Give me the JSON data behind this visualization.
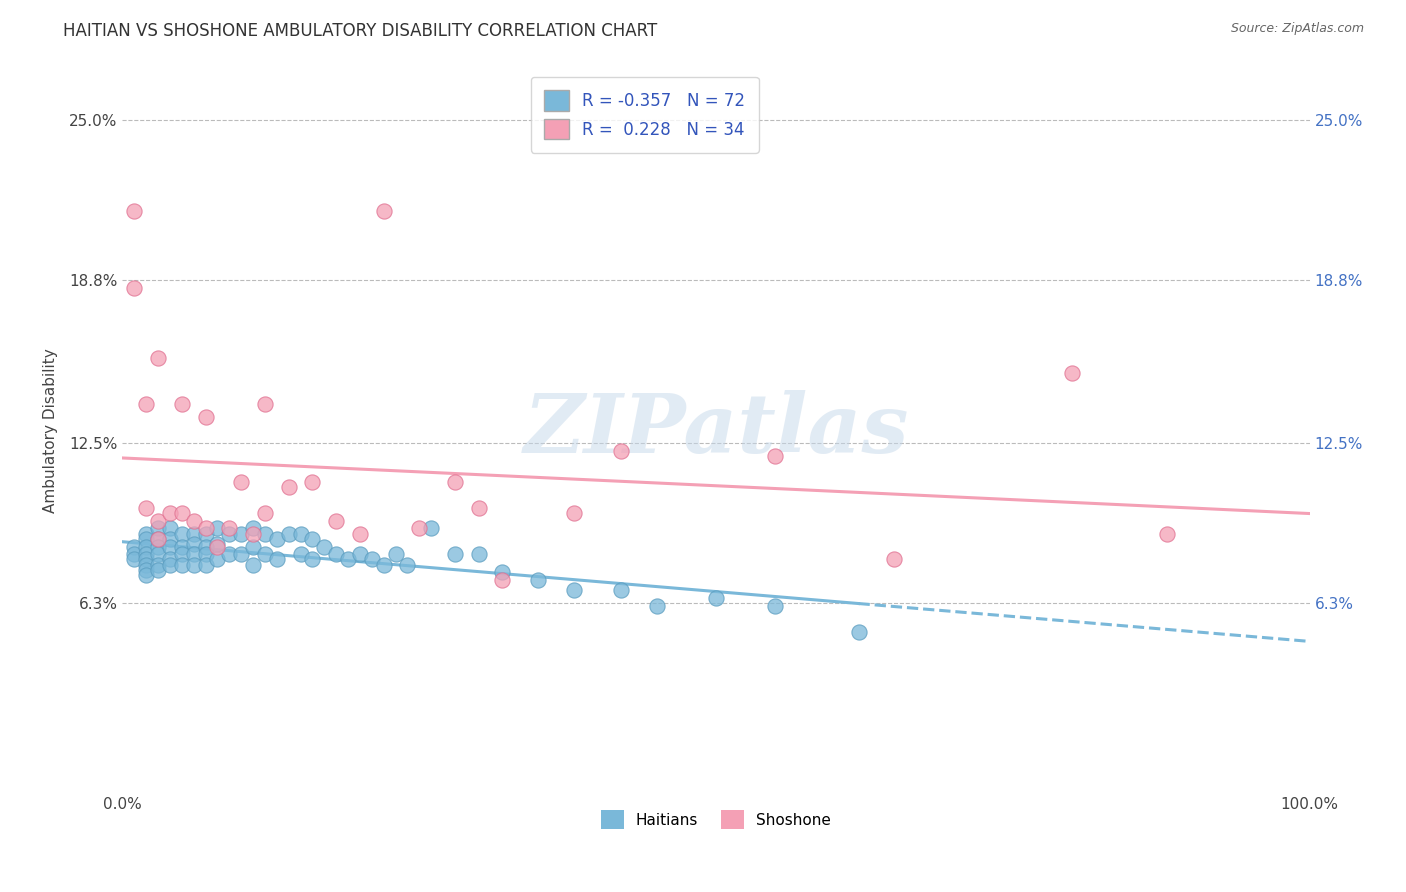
{
  "title": "HAITIAN VS SHOSHONE AMBULATORY DISABILITY CORRELATION CHART",
  "source": "Source: ZipAtlas.com",
  "ylabel": "Ambulatory Disability",
  "xlim": [
    0.0,
    1.0
  ],
  "ylim": [
    -0.01,
    0.27
  ],
  "yticks": [
    0.063,
    0.125,
    0.188,
    0.25
  ],
  "ytick_labels": [
    "6.3%",
    "12.5%",
    "18.8%",
    "25.0%"
  ],
  "xticks": [
    0.0,
    1.0
  ],
  "xtick_labels": [
    "0.0%",
    "100.0%"
  ],
  "haitian_color": "#7ab8d9",
  "haitian_color_edge": "#5a9cbf",
  "shoshone_color": "#f4a0b5",
  "shoshone_color_edge": "#e07090",
  "haitian_R": -0.357,
  "haitian_N": 72,
  "shoshone_R": 0.228,
  "shoshone_N": 34,
  "legend_label_haitian": "Haitians",
  "legend_label_shoshone": "Shoshone",
  "watermark": "ZIPatlas",
  "right_tick_color": "#4472c4",
  "haitian_x": [
    0.01,
    0.01,
    0.01,
    0.02,
    0.02,
    0.02,
    0.02,
    0.02,
    0.02,
    0.02,
    0.02,
    0.03,
    0.03,
    0.03,
    0.03,
    0.03,
    0.03,
    0.04,
    0.04,
    0.04,
    0.04,
    0.04,
    0.05,
    0.05,
    0.05,
    0.05,
    0.06,
    0.06,
    0.06,
    0.06,
    0.07,
    0.07,
    0.07,
    0.07,
    0.08,
    0.08,
    0.08,
    0.09,
    0.09,
    0.1,
    0.1,
    0.11,
    0.11,
    0.11,
    0.12,
    0.12,
    0.13,
    0.13,
    0.14,
    0.15,
    0.15,
    0.16,
    0.16,
    0.17,
    0.18,
    0.19,
    0.2,
    0.21,
    0.22,
    0.23,
    0.24,
    0.26,
    0.28,
    0.3,
    0.32,
    0.35,
    0.38,
    0.42,
    0.45,
    0.5,
    0.55,
    0.62
  ],
  "haitian_y": [
    0.085,
    0.082,
    0.08,
    0.09,
    0.088,
    0.085,
    0.082,
    0.08,
    0.078,
    0.076,
    0.074,
    0.092,
    0.088,
    0.085,
    0.082,
    0.078,
    0.076,
    0.092,
    0.088,
    0.085,
    0.08,
    0.078,
    0.09,
    0.085,
    0.082,
    0.078,
    0.09,
    0.086,
    0.082,
    0.078,
    0.09,
    0.085,
    0.082,
    0.078,
    0.092,
    0.086,
    0.08,
    0.09,
    0.082,
    0.09,
    0.082,
    0.092,
    0.085,
    0.078,
    0.09,
    0.082,
    0.088,
    0.08,
    0.09,
    0.09,
    0.082,
    0.088,
    0.08,
    0.085,
    0.082,
    0.08,
    0.082,
    0.08,
    0.078,
    0.082,
    0.078,
    0.092,
    0.082,
    0.082,
    0.075,
    0.072,
    0.068,
    0.068,
    0.062,
    0.065,
    0.062,
    0.052
  ],
  "shoshone_x": [
    0.01,
    0.01,
    0.02,
    0.02,
    0.03,
    0.03,
    0.04,
    0.05,
    0.06,
    0.07,
    0.08,
    0.09,
    0.1,
    0.11,
    0.12,
    0.14,
    0.16,
    0.18,
    0.2,
    0.22,
    0.25,
    0.28,
    0.3,
    0.32,
    0.38,
    0.42,
    0.55,
    0.65,
    0.8,
    0.88,
    0.03,
    0.05,
    0.07,
    0.12
  ],
  "shoshone_y": [
    0.215,
    0.185,
    0.14,
    0.1,
    0.095,
    0.088,
    0.098,
    0.098,
    0.095,
    0.092,
    0.085,
    0.092,
    0.11,
    0.09,
    0.098,
    0.108,
    0.11,
    0.095,
    0.09,
    0.215,
    0.092,
    0.11,
    0.1,
    0.072,
    0.098,
    0.122,
    0.12,
    0.08,
    0.152,
    0.09,
    0.158,
    0.14,
    0.135,
    0.14
  ]
}
